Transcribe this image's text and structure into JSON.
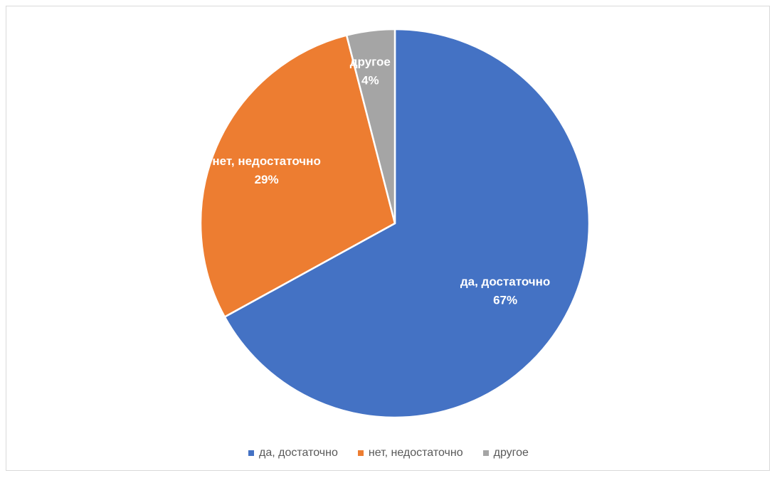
{
  "chart_data": {
    "type": "pie",
    "title": "",
    "legend_position": "bottom",
    "slices": [
      {
        "label": "да, достаточно",
        "value": 67,
        "value_label": "67%",
        "color": "#4472C4"
      },
      {
        "label": "нет, недостаточно",
        "value": 29,
        "value_label": "29%",
        "color": "#ED7D31"
      },
      {
        "label": "другое",
        "value": 4,
        "value_label": "4%",
        "color": "#A5A5A5"
      }
    ]
  }
}
